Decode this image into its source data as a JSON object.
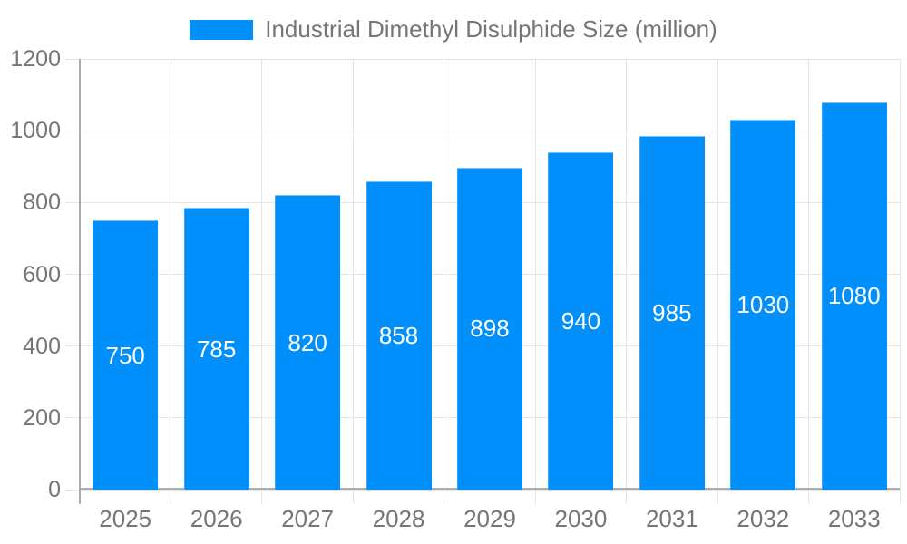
{
  "legend": {
    "label": "Industrial Dimethyl Disulphide Size (million)"
  },
  "colors": {
    "bar": "#008FFB",
    "gridline": "#E5E5E5",
    "axis": "#ACACAC",
    "tick_text": "#757575",
    "bar_label_text": "#FFFFFF",
    "background": "#FFFFFF"
  },
  "chart_data": {
    "type": "bar",
    "title": "Industrial Dimethyl Disulphide Size (million)",
    "series_name": "Industrial Dimethyl Disulphide Size (million)",
    "categories": [
      "2025",
      "2026",
      "2027",
      "2028",
      "2029",
      "2030",
      "2031",
      "2032",
      "2033"
    ],
    "values": [
      750,
      785,
      820,
      858,
      898,
      940,
      985,
      1030,
      1080
    ],
    "xlabel": "",
    "ylabel": "",
    "ylim": [
      0,
      1200
    ],
    "y_ticks": [
      0,
      200,
      400,
      600,
      800,
      1000,
      1200
    ],
    "grid": true,
    "legend_position": "top",
    "bar_labels": "centered-white-inside"
  }
}
